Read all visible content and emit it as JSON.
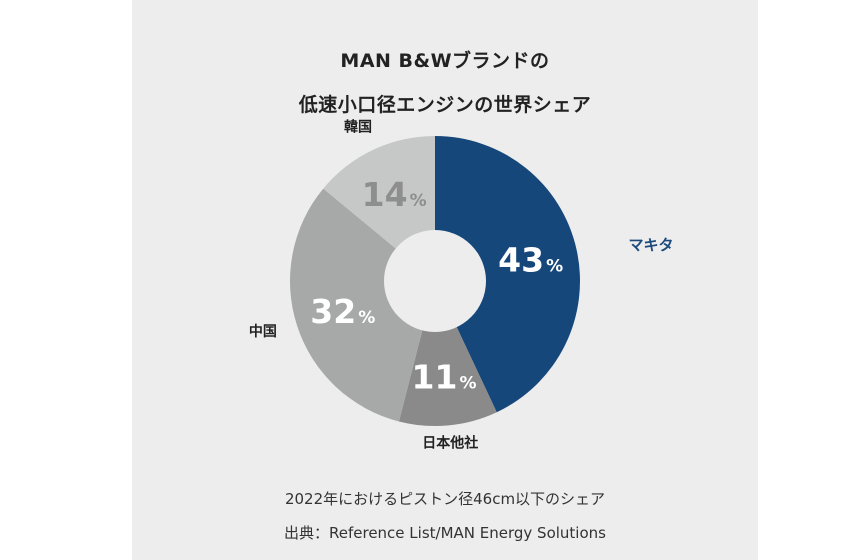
{
  "title_line1": "MAN B&Wブランドの",
  "title_line2": "低速小口径エンジンの世界シェア",
  "chart_data": {
    "type": "pie",
    "title": "MAN B&Wブランドの 低速小口径エンジンの世界シェア",
    "unit": "%",
    "slices": [
      {
        "label": "マキタ",
        "value": 43,
        "color": "#16477a",
        "label_color": "#1c4a7c",
        "value_color": "#ffffff"
      },
      {
        "label": "日本他社",
        "value": 11,
        "color": "#8a8a8a",
        "label_color": "#222222",
        "value_color": "#ffffff"
      },
      {
        "label": "中国",
        "value": 32,
        "color": "#a7a8a8",
        "label_color": "#222222",
        "value_color": "#ffffff"
      },
      {
        "label": "韓国",
        "value": 14,
        "color": "#c6c7c7",
        "label_color": "#222222",
        "value_color": "#8e8e8e"
      }
    ]
  },
  "footnote_line1": "2022年におけるピストン径46cm以下のシェア",
  "footnote_line2": "出典：Reference List/MAN Energy Solutions"
}
